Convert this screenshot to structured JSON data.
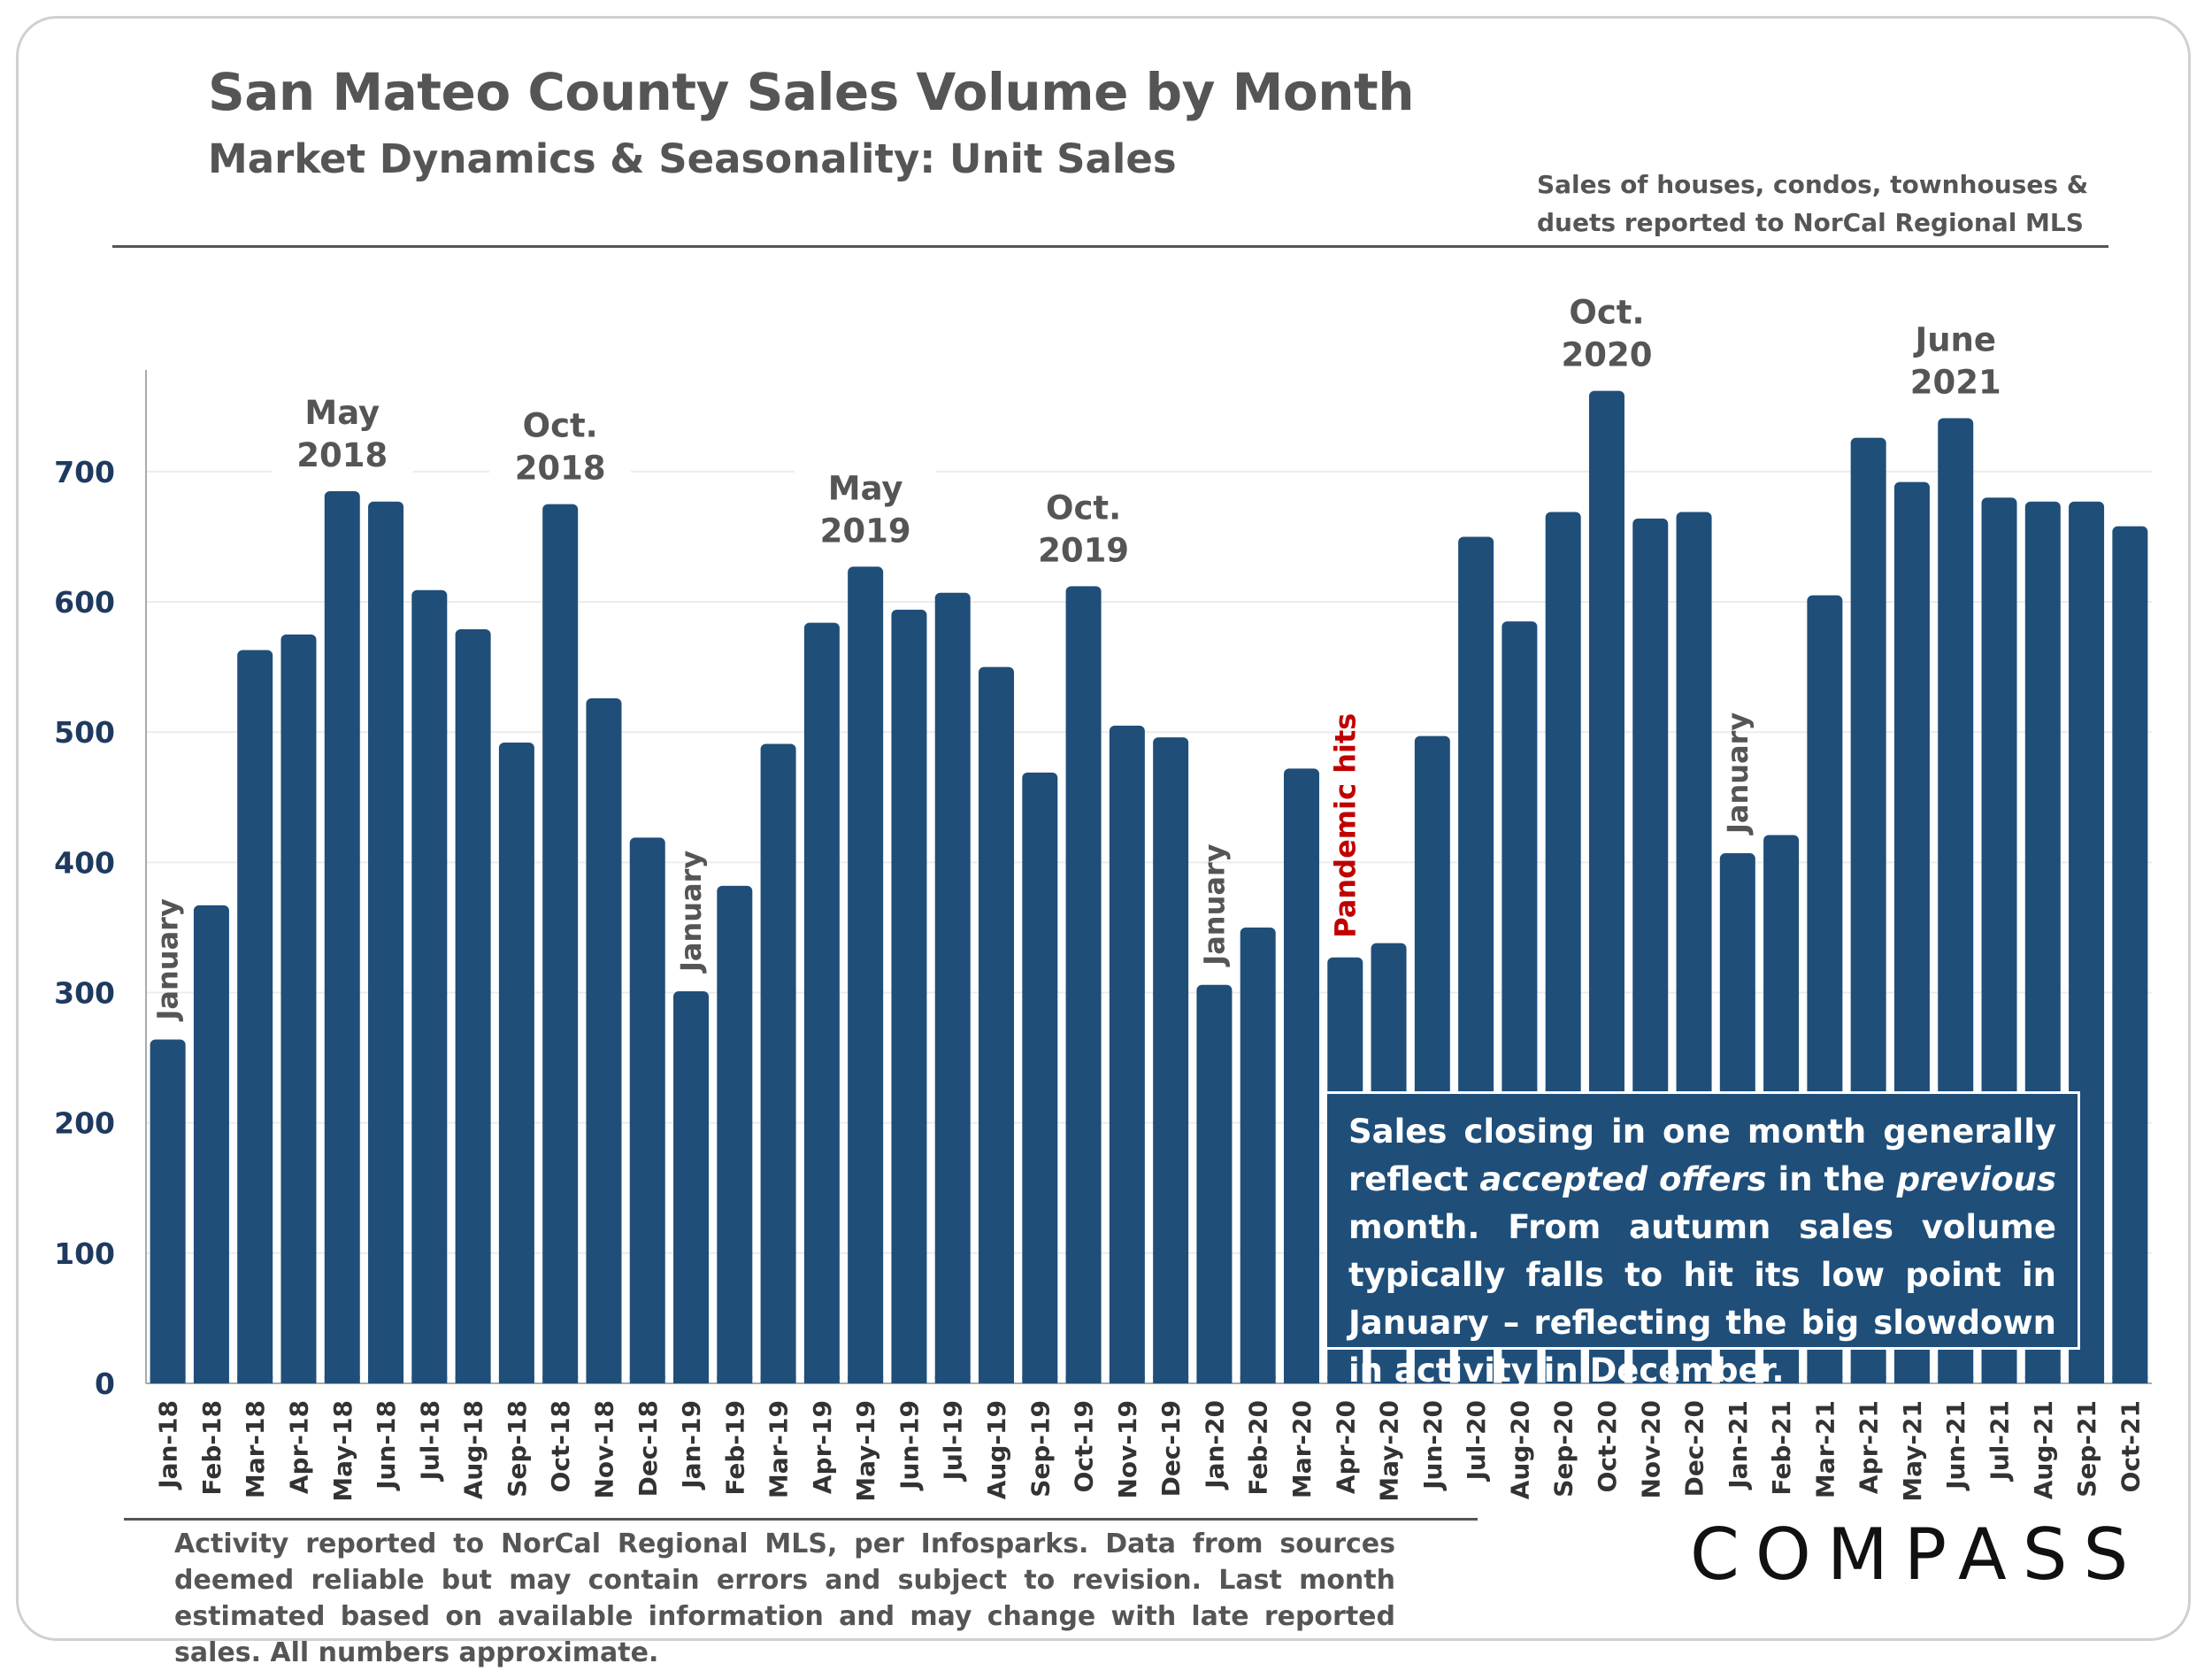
{
  "header": {
    "title": "San Mateo County Sales Volume by Month",
    "subtitle": "Market Dynamics & Seasonality: Unit Sales",
    "note_line1": "Sales of houses, condos, townhouses &",
    "note_line2": "duets reported to NorCal Regional MLS"
  },
  "callout": {
    "part1": "Sales closing in one month generally reflect ",
    "em1": "accepted offers",
    "part2": " in the ",
    "em2": "previous",
    "part3": " month. From autumn sales volume typically falls to hit its low point in January – reflecting the big slowdown in activity in December."
  },
  "footer": {
    "text": "Activity reported to NorCal Regional MLS, per Infosparks. Data from sources deemed reliable but may contain errors and subject to revision. Last month estimated based on available information and may change with late reported sales. All numbers approximate."
  },
  "logo": {
    "text": "COMPASS"
  },
  "colors": {
    "bar": "#1f4e79",
    "text": "#555555",
    "axis_label": "#1f3a5f",
    "pandemic": "#c00000"
  },
  "chart_data": {
    "type": "bar",
    "title": "San Mateo County Sales Volume by Month",
    "ylim": [
      0,
      750
    ],
    "yticks": [
      0,
      100,
      200,
      300,
      400,
      500,
      600,
      700
    ],
    "grid": true,
    "categories": [
      "Jan-18",
      "Feb-18",
      "Mar-18",
      "Apr-18",
      "May-18",
      "Jun-18",
      "Jul-18",
      "Aug-18",
      "Sep-18",
      "Oct-18",
      "Nov-18",
      "Dec-18",
      "Jan-19",
      "Feb-19",
      "Mar-19",
      "Apr-19",
      "May-19",
      "Jun-19",
      "Jul-19",
      "Aug-19",
      "Sep-19",
      "Oct-19",
      "Nov-19",
      "Dec-19",
      "Jan-20",
      "Feb-20",
      "Mar-20",
      "Apr-20",
      "May-20",
      "Jun-20",
      "Jul-20",
      "Aug-20",
      "Sep-20",
      "Oct-20",
      "Nov-20",
      "Dec-20",
      "Jan-21",
      "Feb-21",
      "Mar-21",
      "Apr-21",
      "May-21",
      "Jun-21",
      "Jul-21",
      "Aug-21",
      "Sep-21",
      "Oct-21"
    ],
    "values": [
      264,
      367,
      563,
      575,
      685,
      677,
      609,
      579,
      492,
      675,
      526,
      419,
      301,
      382,
      491,
      584,
      627,
      594,
      607,
      550,
      469,
      612,
      505,
      496,
      306,
      350,
      472,
      327,
      338,
      497,
      650,
      585,
      669,
      762,
      664,
      669,
      407,
      421,
      605,
      726,
      692,
      741,
      680,
      677,
      677,
      658
    ],
    "annotations": [
      {
        "category": "Jan-18",
        "text": "January",
        "vertical": true
      },
      {
        "category": "Jan-19",
        "text": "January",
        "vertical": true
      },
      {
        "category": "Jan-20",
        "text": "January",
        "vertical": true
      },
      {
        "category": "Jan-21",
        "text": "January",
        "vertical": true
      },
      {
        "category": "Apr-20",
        "text": "Pandemic hits",
        "vertical": true,
        "highlight": true
      },
      {
        "category": "May-18",
        "lines": [
          "May",
          "2018"
        ]
      },
      {
        "category": "Oct-18",
        "lines": [
          "Oct.",
          "2018"
        ]
      },
      {
        "category": "May-19",
        "lines": [
          "May",
          "2019"
        ]
      },
      {
        "category": "Oct-19",
        "lines": [
          "Oct.",
          "2019"
        ]
      },
      {
        "category": "Oct-20",
        "lines": [
          "Oct.",
          "2020"
        ]
      },
      {
        "category": "Jun-21",
        "lines": [
          "June",
          "2021"
        ]
      }
    ]
  }
}
